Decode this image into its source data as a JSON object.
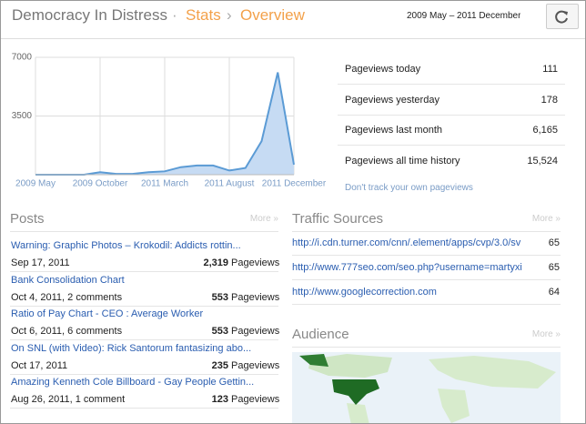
{
  "header": {
    "blog": "Democracy In Distress",
    "crumbs": [
      "Stats",
      "Overview"
    ],
    "range": "2009 May – 2011 December"
  },
  "chart_data": {
    "type": "area",
    "color": "#5b9bd5",
    "categories": [
      "2009 May",
      null,
      null,
      null,
      "2009 October",
      null,
      null,
      null,
      "2011 March",
      null,
      null,
      null,
      "2011 August",
      null,
      null,
      null,
      "2011 December"
    ],
    "values": [
      0,
      0,
      0,
      0,
      150,
      50,
      50,
      150,
      200,
      450,
      550,
      550,
      250,
      400,
      2000,
      6100,
      600
    ],
    "ylim": [
      0,
      7000
    ],
    "yticks": [
      3500,
      7000
    ],
    "grid": true
  },
  "stats": [
    {
      "label": "Pageviews today",
      "value": "111"
    },
    {
      "label": "Pageviews yesterday",
      "value": "178"
    },
    {
      "label": "Pageviews last month",
      "value": "6,165"
    },
    {
      "label": "Pageviews all time history",
      "value": "15,524"
    }
  ],
  "dont_track": "Don't track your own pageviews",
  "posts": {
    "title": "Posts",
    "more": "More »",
    "items": [
      {
        "title": "Warning: Graphic Photos – Krokodil: Addicts rottin...",
        "meta": "Sep 17, 2011",
        "count": "2,319",
        "unit": "Pageviews"
      },
      {
        "title": "Bank Consolidation Chart",
        "meta": "Oct 4, 2011, 2 comments",
        "count": "553",
        "unit": "Pageviews"
      },
      {
        "title": "Ratio of Pay Chart - CEO : Average Worker",
        "meta": "Oct 6, 2011, 6 comments",
        "count": "553",
        "unit": "Pageviews"
      },
      {
        "title": "On SNL (with Video): Rick Santorum fantasizing abo...",
        "meta": "Oct 17, 2011",
        "count": "235",
        "unit": "Pageviews"
      },
      {
        "title": "Amazing Kenneth Cole Billboard - Gay People Gettin...",
        "meta": "Aug 26, 2011, 1 comment",
        "count": "123",
        "unit": "Pageviews"
      }
    ]
  },
  "traffic": {
    "title": "Traffic Sources",
    "more": "More »",
    "items": [
      {
        "url": "http://i.cdn.turner.com/cnn/.element/apps/cvp/3.0/sv",
        "count": "65"
      },
      {
        "url": "http://www.777seo.com/seo.php?username=martyxi",
        "count": "65"
      },
      {
        "url": "http://www.googlecorrection.com",
        "count": "64"
      }
    ]
  },
  "audience": {
    "title": "Audience",
    "more": "More »"
  }
}
